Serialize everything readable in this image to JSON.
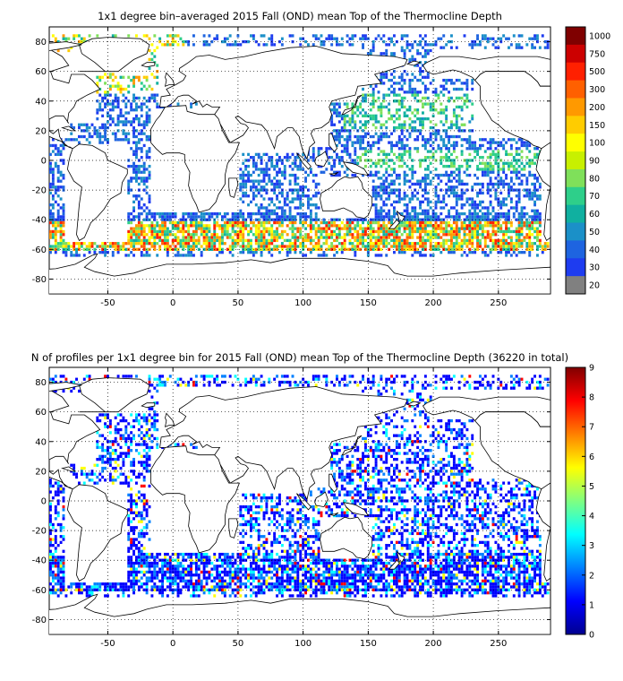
{
  "chart_data": [
    {
      "type": "heatmap",
      "title": "1x1 degree bin–averaged 2015 Fall (OND) mean Top of the Thermocline Depth",
      "xlabel": "",
      "ylabel": "",
      "xlim": [
        -95,
        290
      ],
      "ylim": [
        -90,
        90
      ],
      "x_ticks": [
        "-50",
        "0",
        "50",
        "100",
        "150",
        "200",
        "250"
      ],
      "x_tick_values": [
        -50,
        0,
        50,
        100,
        150,
        200,
        250
      ],
      "y_ticks": [
        "80",
        "60",
        "40",
        "20",
        "0",
        "-20",
        "-40",
        "-60",
        "-80"
      ],
      "y_tick_values": [
        80,
        60,
        40,
        20,
        0,
        -20,
        -40,
        -60,
        -80
      ],
      "grid": true,
      "colorbar": {
        "labels": [
          "1000",
          "750",
          "500",
          "300",
          "200",
          "150",
          "100",
          "90",
          "80",
          "70",
          "60",
          "50",
          "40",
          "30",
          "20"
        ],
        "colors": [
          "#7f0000",
          "#cc0000",
          "#ff2000",
          "#ff6000",
          "#ff9900",
          "#ffcc00",
          "#ffff00",
          "#c8f000",
          "#7fe05a",
          "#2ecf8a",
          "#10b0a0",
          "#1b90c8",
          "#1e64e0",
          "#1e3cf0",
          "#808080"
        ]
      },
      "series_description_colors": [
        "#1e3cf0",
        "#1e64e0",
        "#1b90c8",
        "#10b0a0",
        "#2ecf8a",
        "#7fe05a",
        "#ffff00",
        "#ffcc00",
        "#ff9900",
        "#ff6000",
        "#ff2000"
      ]
    },
    {
      "type": "heatmap",
      "title": "N of profiles per 1x1 degree bin for 2015 Fall (OND) mean Top of the Thermocline Depth  (36220 in total)",
      "xlabel": "",
      "ylabel": "",
      "xlim": [
        -95,
        290
      ],
      "ylim": [
        -90,
        90
      ],
      "x_ticks": [
        "-50",
        "0",
        "50",
        "100",
        "150",
        "200",
        "250"
      ],
      "x_tick_values": [
        -50,
        0,
        50,
        100,
        150,
        200,
        250
      ],
      "y_ticks": [
        "80",
        "60",
        "40",
        "20",
        "0",
        "-20",
        "-40",
        "-60",
        "-80"
      ],
      "y_tick_values": [
        80,
        60,
        40,
        20,
        0,
        -20,
        -40,
        -60,
        -80
      ],
      "grid": true,
      "colorbar": {
        "min": 0,
        "max": 9,
        "labels": [
          "9",
          "8",
          "7",
          "6",
          "5",
          "4",
          "3",
          "2",
          "1",
          "0"
        ],
        "gradient": [
          "#800000",
          "#ff0000",
          "#ff8000",
          "#ffff00",
          "#80ff80",
          "#00ffff",
          "#0080ff",
          "#0000ff",
          "#00008f"
        ]
      },
      "total_profiles": 36220
    }
  ]
}
